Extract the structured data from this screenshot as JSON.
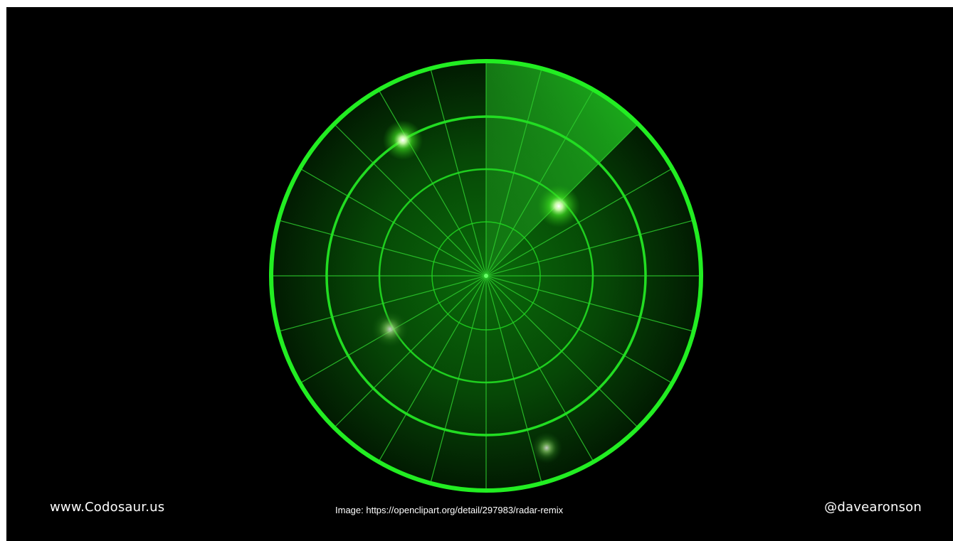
{
  "footer": {
    "website": "www.Codosaur.us",
    "credit": "Image: https://openclipart.org/detail/297983/radar-remix",
    "handle": "@davearonson"
  },
  "radar": {
    "ring_color": "#22ee22",
    "grid_color": "#33cc33",
    "background_color": "#000000",
    "blip_color": "#66ff44"
  }
}
